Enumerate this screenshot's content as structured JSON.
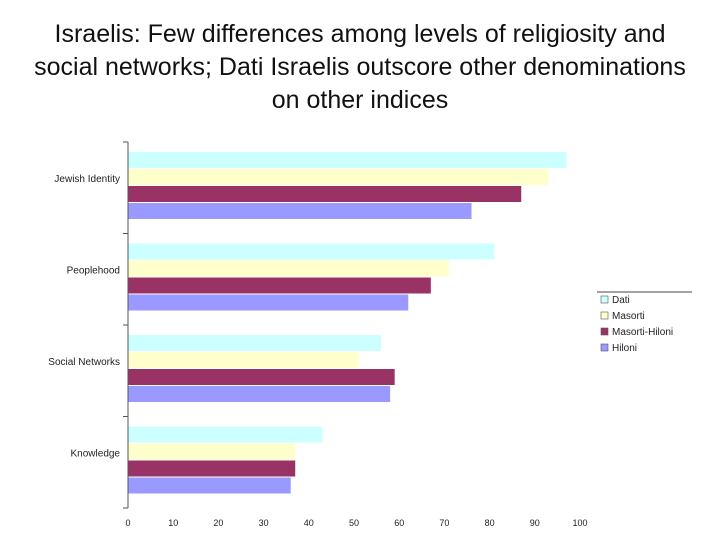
{
  "slide": {
    "title": "Israelis: Few differences among levels of religiosity and social networks; Dati Israelis outscore other denominations on other indices"
  },
  "chart_data": {
    "type": "bar",
    "orientation": "horizontal",
    "categories": [
      "Jewish Identity",
      "Peoplehood",
      "Social Networks",
      "Knowledge"
    ],
    "series": [
      {
        "name": "Dati",
        "color": "#ccffff",
        "values": [
          97,
          81,
          56,
          43
        ]
      },
      {
        "name": "Masorti",
        "color": "#ffffcc",
        "values": [
          93,
          71,
          51,
          37
        ]
      },
      {
        "name": "Masorti-Hiloni",
        "color": "#993366",
        "values": [
          87,
          67,
          59,
          37
        ]
      },
      {
        "name": "Hiloni",
        "color": "#9999ff",
        "values": [
          76,
          62,
          58,
          36
        ]
      }
    ],
    "xlim": [
      0,
      100
    ],
    "xticks": [
      0,
      10,
      20,
      30,
      40,
      50,
      60,
      70,
      80,
      90,
      100
    ],
    "xlabel": "",
    "ylabel": "",
    "grid": false,
    "legend_position": "right"
  }
}
